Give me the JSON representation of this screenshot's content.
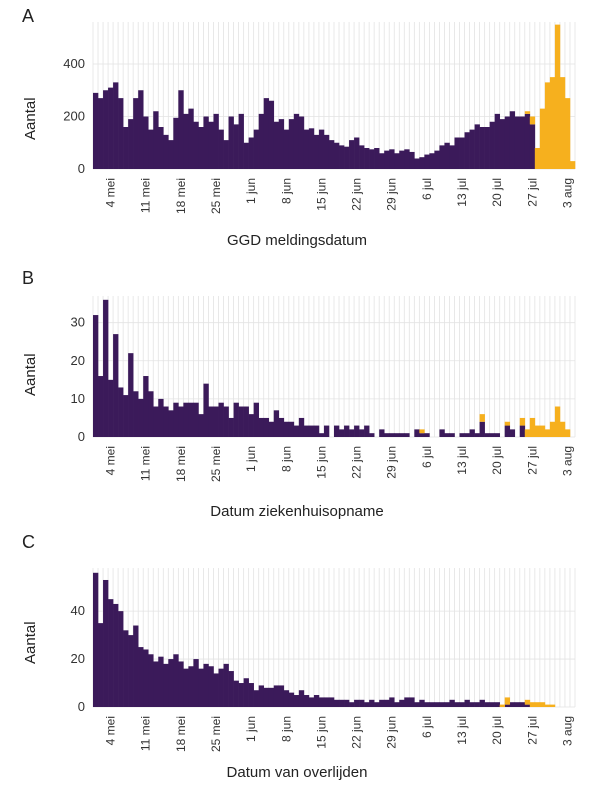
{
  "colors": {
    "reported": "#3b1a5a",
    "recent": "#f6b01e",
    "grid": "#e3e3e3"
  },
  "chart_data": [
    {
      "panel": "A",
      "type": "bar",
      "stacked": true,
      "x": {
        "start": "2020-05-01",
        "ticks": [
          "4 mei",
          "11 mei",
          "18 mei",
          "25 mei",
          "1 jun",
          "8 jun",
          "15 jun",
          "22 jun",
          "29 jun",
          "6 jul",
          "13 jul",
          "20 jul",
          "27 jul",
          "3 aug"
        ],
        "tick_day_index": [
          3,
          10,
          17,
          24,
          31,
          38,
          45,
          52,
          59,
          66,
          73,
          80,
          87,
          94
        ],
        "xlim_days": [
          0,
          96
        ]
      },
      "xlabel": "GGD meldingsdatum",
      "ylabel": "Aantal",
      "yticks": [
        0,
        200,
        400
      ],
      "ylim": [
        0,
        560
      ],
      "grid": true,
      "series": [
        {
          "color_key": "reported",
          "values": [
            290,
            270,
            300,
            310,
            330,
            270,
            160,
            190,
            270,
            300,
            200,
            150,
            220,
            160,
            130,
            110,
            195,
            300,
            210,
            230,
            180,
            160,
            200,
            180,
            210,
            150,
            110,
            200,
            170,
            210,
            100,
            120,
            150,
            210,
            270,
            260,
            180,
            190,
            150,
            190,
            210,
            200,
            150,
            155,
            130,
            150,
            130,
            110,
            100,
            90,
            85,
            110,
            120,
            90,
            80,
            75,
            80,
            60,
            70,
            75,
            60,
            70,
            75,
            65,
            40,
            45,
            55,
            60,
            70,
            90,
            100,
            90,
            120,
            120,
            140,
            150,
            170,
            160,
            160,
            180,
            210,
            190,
            200,
            220,
            200,
            200,
            210,
            170,
            0,
            0,
            0,
            0,
            0,
            0,
            0,
            0
          ]
        },
        {
          "color_key": "recent",
          "values": [
            0,
            0,
            0,
            0,
            0,
            0,
            0,
            0,
            0,
            0,
            0,
            0,
            0,
            0,
            0,
            0,
            0,
            0,
            0,
            0,
            0,
            0,
            0,
            0,
            0,
            0,
            0,
            0,
            0,
            0,
            0,
            0,
            0,
            0,
            0,
            0,
            0,
            0,
            0,
            0,
            0,
            0,
            0,
            0,
            0,
            0,
            0,
            0,
            0,
            0,
            0,
            0,
            0,
            0,
            0,
            0,
            0,
            0,
            0,
            0,
            0,
            0,
            0,
            0,
            0,
            0,
            0,
            0,
            0,
            0,
            0,
            0,
            0,
            0,
            0,
            0,
            0,
            0,
            0,
            0,
            0,
            0,
            0,
            0,
            0,
            0,
            10,
            30,
            80,
            230,
            330,
            350,
            550,
            350,
            270,
            30
          ]
        }
      ]
    },
    {
      "panel": "B",
      "type": "bar",
      "stacked": true,
      "x": {
        "start": "2020-05-01",
        "ticks": [
          "4 mei",
          "11 mei",
          "18 mei",
          "25 mei",
          "1 jun",
          "8 jun",
          "15 jun",
          "22 jun",
          "29 jun",
          "6 jul",
          "13 jul",
          "20 jul",
          "27 jul",
          "3 aug"
        ],
        "tick_day_index": [
          3,
          10,
          17,
          24,
          31,
          38,
          45,
          52,
          59,
          66,
          73,
          80,
          87,
          94
        ],
        "xlim_days": [
          0,
          96
        ]
      },
      "xlabel": "Datum ziekenhuisopname",
      "ylabel": "Aantal",
      "yticks": [
        0,
        10,
        20,
        30
      ],
      "ylim": [
        0,
        37
      ],
      "grid": true,
      "series": [
        {
          "color_key": "reported",
          "values": [
            32,
            16,
            36,
            15,
            27,
            13,
            11,
            22,
            12,
            10,
            16,
            12,
            8,
            10,
            8,
            7,
            9,
            8,
            9,
            9,
            9,
            6,
            14,
            8,
            8,
            9,
            8,
            5,
            9,
            8,
            8,
            6,
            9,
            5,
            5,
            4,
            7,
            5,
            4,
            4,
            3,
            5,
            3,
            3,
            3,
            1,
            3,
            0,
            3,
            2,
            3,
            2,
            3,
            2,
            3,
            1,
            0,
            2,
            1,
            1,
            1,
            1,
            1,
            0,
            2,
            1,
            1,
            0,
            0,
            2,
            1,
            1,
            0,
            1,
            1,
            2,
            1,
            4,
            1,
            1,
            1,
            0,
            3,
            2,
            0,
            3,
            0,
            0,
            0,
            0,
            0,
            0,
            0,
            0,
            0,
            0
          ]
        },
        {
          "color_key": "recent",
          "values": [
            0,
            0,
            0,
            0,
            0,
            0,
            0,
            0,
            0,
            0,
            0,
            0,
            0,
            0,
            0,
            0,
            0,
            0,
            0,
            0,
            0,
            0,
            0,
            0,
            0,
            0,
            0,
            0,
            0,
            0,
            0,
            0,
            0,
            0,
            0,
            0,
            0,
            0,
            0,
            0,
            0,
            0,
            0,
            0,
            0,
            0,
            0,
            0,
            0,
            0,
            0,
            0,
            0,
            0,
            0,
            0,
            0,
            0,
            0,
            0,
            0,
            0,
            0,
            0,
            0,
            1,
            0,
            0,
            0,
            0,
            0,
            0,
            0,
            0,
            0,
            0,
            0,
            2,
            0,
            0,
            0,
            0,
            1,
            0,
            0,
            2,
            2,
            5,
            3,
            3,
            2,
            4,
            8,
            4,
            2,
            0
          ]
        }
      ]
    },
    {
      "panel": "C",
      "type": "bar",
      "stacked": true,
      "x": {
        "start": "2020-05-01",
        "ticks": [
          "4 mei",
          "11 mei",
          "18 mei",
          "25 mei",
          "1 jun",
          "8 jun",
          "15 jun",
          "22 jun",
          "29 jun",
          "6 jul",
          "13 jul",
          "20 jul",
          "27 jul",
          "3 aug"
        ],
        "tick_day_index": [
          3,
          10,
          17,
          24,
          31,
          38,
          45,
          52,
          59,
          66,
          73,
          80,
          87,
          94
        ],
        "xlim_days": [
          0,
          96
        ]
      },
      "xlabel": "Datum van overlijden",
      "ylabel": "Aantal",
      "yticks": [
        0,
        20,
        40
      ],
      "ylim": [
        0,
        58
      ],
      "grid": true,
      "series": [
        {
          "color_key": "reported",
          "values": [
            56,
            35,
            53,
            45,
            43,
            40,
            32,
            30,
            34,
            25,
            24,
            22,
            19,
            21,
            18,
            20,
            22,
            19,
            16,
            17,
            20,
            16,
            18,
            17,
            14,
            16,
            18,
            15,
            11,
            10,
            12,
            10,
            7,
            9,
            8,
            8,
            9,
            9,
            7,
            6,
            5,
            7,
            5,
            4,
            5,
            4,
            4,
            4,
            3,
            3,
            3,
            2,
            3,
            3,
            2,
            3,
            2,
            3,
            3,
            4,
            2,
            3,
            4,
            4,
            2,
            3,
            2,
            2,
            2,
            2,
            2,
            3,
            2,
            2,
            3,
            2,
            2,
            3,
            2,
            2,
            2,
            0,
            1,
            2,
            2,
            2,
            1,
            0,
            0,
            0,
            0,
            0,
            0,
            0,
            0,
            0
          ]
        },
        {
          "color_key": "recent",
          "values": [
            0,
            0,
            0,
            0,
            0,
            0,
            0,
            0,
            0,
            0,
            0,
            0,
            0,
            0,
            0,
            0,
            0,
            0,
            0,
            0,
            0,
            0,
            0,
            0,
            0,
            0,
            0,
            0,
            0,
            0,
            0,
            0,
            0,
            0,
            0,
            0,
            0,
            0,
            0,
            0,
            0,
            0,
            0,
            0,
            0,
            0,
            0,
            0,
            0,
            0,
            0,
            0,
            0,
            0,
            0,
            0,
            0,
            0,
            0,
            0,
            0,
            0,
            0,
            0,
            0,
            0,
            0,
            0,
            0,
            0,
            0,
            0,
            0,
            0,
            0,
            0,
            0,
            0,
            0,
            0,
            0,
            1,
            3,
            0,
            0,
            0,
            2,
            2,
            2,
            2,
            1,
            1,
            0,
            0,
            0,
            0
          ]
        }
      ]
    }
  ]
}
